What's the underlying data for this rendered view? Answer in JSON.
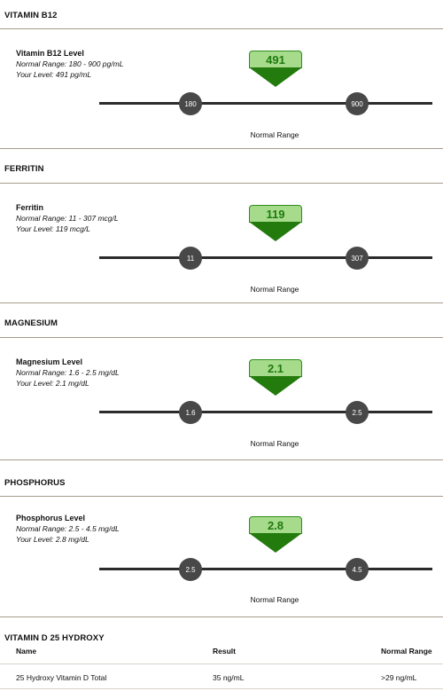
{
  "sections": [
    {
      "title": "VITAMIN B12",
      "name": "Vitamin B12 Level",
      "range_text": "Normal Range: 180 - 900 pg/mL",
      "level_text": "Your Level: 491 pg/mL",
      "value": "491",
      "min": "180",
      "max": "900",
      "normal_label": "Normal Range"
    },
    {
      "title": "FERRITIN",
      "name": "Ferritin",
      "range_text": "Normal Range: 11 - 307 mcg/L",
      "level_text": "Your Level: 119 mcg/L",
      "value": "119",
      "min": "11",
      "max": "307",
      "normal_label": "Normal Range"
    },
    {
      "title": "MAGNESIUM",
      "name": "Magnesium Level",
      "range_text": "Normal Range: 1.6 - 2.5 mg/dL",
      "level_text": "Your Level: 2.1 mg/dL",
      "value": "2.1",
      "min": "1.6",
      "max": "2.5",
      "normal_label": "Normal Range"
    },
    {
      "title": "PHOSPHORUS",
      "name": "Phosphorus Level",
      "range_text": "Normal Range: 2.5 - 4.5 mg/dL",
      "level_text": "Your Level: 2.8 mg/dL",
      "value": "2.8",
      "min": "2.5",
      "max": "4.5",
      "normal_label": "Normal Range"
    }
  ],
  "vitd": {
    "title": "VITAMIN D 25 HYDROXY",
    "headers": {
      "name": "Name",
      "result": "Result",
      "range": "Normal Range"
    },
    "row": {
      "name": "25 Hydroxy Vitamin D Total",
      "result": "35 ng/mL",
      "range": ">29 ng/mL"
    }
  },
  "colors": {
    "marker_fill": "#a6db8c",
    "marker_dark": "#237a0d",
    "dot": "#484848",
    "rule": "#a79c8c"
  }
}
